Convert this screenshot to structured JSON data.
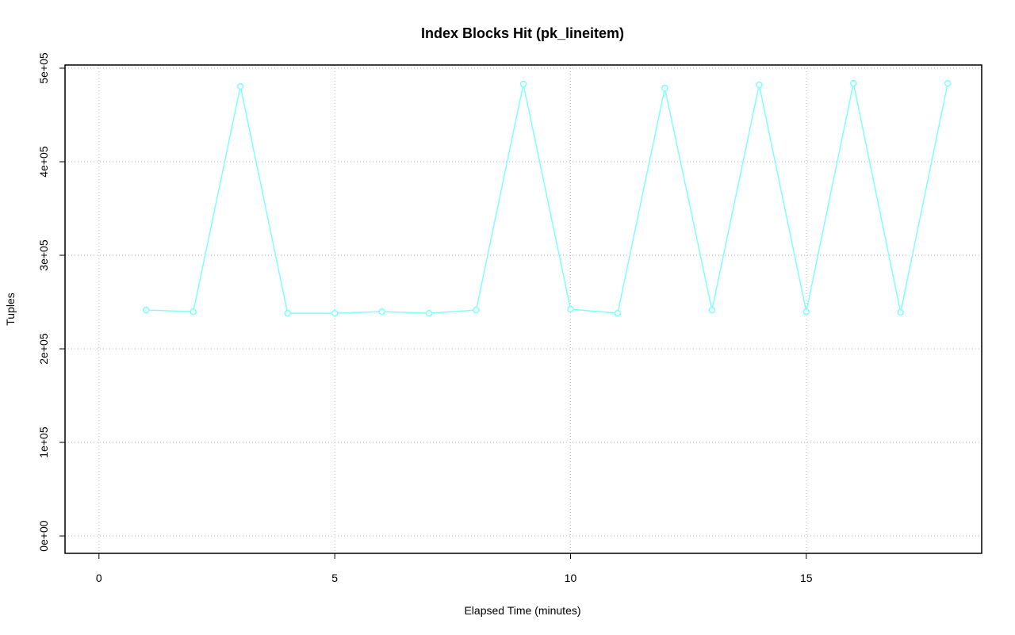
{
  "chart_data": {
    "type": "line",
    "title": "Index Blocks Hit (pk_lineitem)",
    "x_label": "Elapsed Time (minutes)",
    "y_label": "Tuples",
    "series": [
      {
        "name": "pk_lineitem",
        "color": "#80ffff",
        "x": [
          1,
          2,
          3,
          4,
          5,
          6,
          7,
          8,
          9,
          10,
          11,
          12,
          13,
          14,
          15,
          16,
          17,
          18
        ],
        "values": [
          241500,
          239800,
          480500,
          238100,
          238100,
          239800,
          238100,
          241500,
          483000,
          242400,
          238100,
          478800,
          241500,
          482200,
          239800,
          483900,
          239000,
          483900
        ]
      }
    ],
    "xlim": [
      -0.72,
      18.72
    ],
    "xticks": [
      0,
      5,
      10,
      15
    ],
    "ylim": [
      -18600,
      503400
    ],
    "yticks": [
      {
        "value": 0,
        "label": "0e+00"
      },
      {
        "value": 100000,
        "label": "1e+05"
      },
      {
        "value": 200000,
        "label": "2e+05"
      },
      {
        "value": 300000,
        "label": "3e+05"
      },
      {
        "value": 400000,
        "label": "4e+05"
      },
      {
        "value": 500000,
        "label": "5e+05"
      }
    ],
    "grid": true
  }
}
